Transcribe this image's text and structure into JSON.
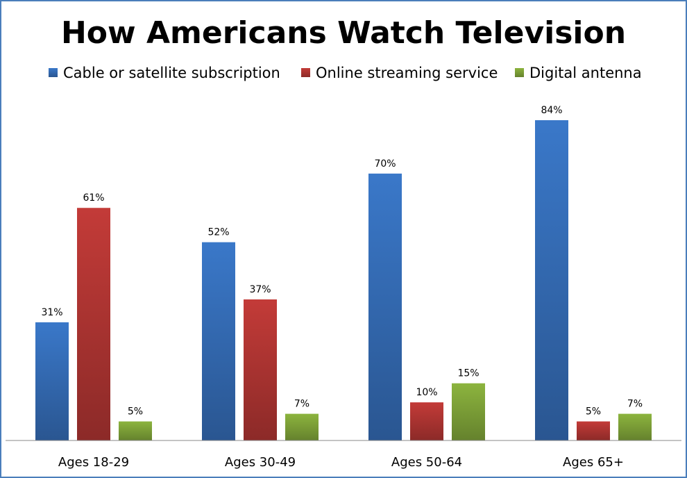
{
  "chart_data": {
    "type": "bar",
    "title": "How Americans Watch Television",
    "categories": [
      "Ages 18-29",
      "Ages 30-49",
      "Ages 50-64",
      "Ages 65+"
    ],
    "series": [
      {
        "name": "Cable or satellite subscription",
        "values": [
          31,
          52,
          70,
          84
        ],
        "color": "#3a78c9"
      },
      {
        "name": "Online streaming service",
        "values": [
          61,
          37,
          10,
          5
        ],
        "color": "#c33b38"
      },
      {
        "name": "Digital antenna",
        "values": [
          5,
          7,
          15,
          7
        ],
        "color": "#8cb43e"
      }
    ],
    "value_suffix": "%",
    "ylim": [
      0,
      84
    ],
    "grid": false,
    "legend_position": "top",
    "border_color": "#4a7ebb"
  }
}
